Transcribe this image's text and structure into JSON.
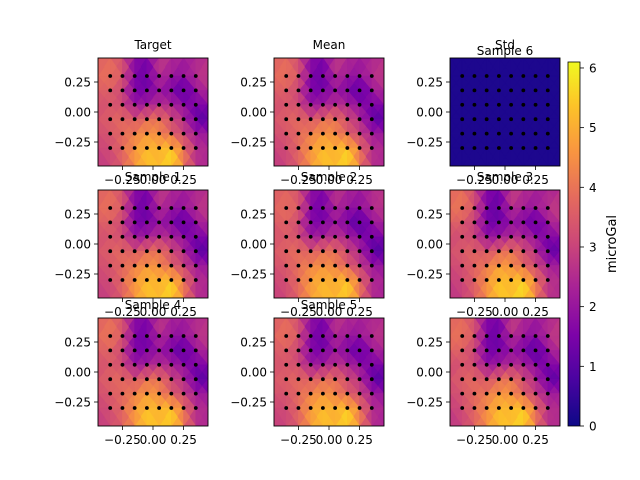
{
  "colors": {
    "colormap": "plasma",
    "dots": "#000000",
    "axes": "#000000",
    "background": "#ffffff"
  },
  "chart_data": {
    "type": "heatmap",
    "layout": "3x3 grid of filled contour panels sharing one colorbar",
    "x_ticks": [
      -0.25,
      0.0,
      0.25
    ],
    "x_tick_labels": [
      "−0.25",
      "0.00",
      "0.25"
    ],
    "y_ticks": [
      0.25,
      0.0,
      -0.25
    ],
    "y_tick_labels": [
      "0.25",
      "0.00",
      "−0.25"
    ],
    "xlim": [
      -0.45,
      0.45
    ],
    "ylim": [
      -0.45,
      0.45
    ],
    "station_x": [
      -0.35,
      -0.25,
      -0.15,
      -0.05,
      0.05,
      0.15,
      0.25,
      0.35
    ],
    "station_y": [
      0.3,
      0.18,
      0.06,
      -0.06,
      -0.18,
      -0.3
    ],
    "grid_x": [
      -0.45,
      -0.35,
      -0.25,
      -0.15,
      -0.05,
      0.05,
      0.15,
      0.25,
      0.35,
      0.45
    ],
    "grid_y": [
      0.45,
      0.3,
      0.18,
      0.06,
      -0.06,
      -0.18,
      -0.3,
      -0.45
    ],
    "colorbar": {
      "label": "microGal",
      "min": 0,
      "max": 6.1,
      "ticks": [
        0,
        1,
        2,
        3,
        4,
        5,
        6
      ],
      "tick_labels": [
        "0",
        "1",
        "2",
        "3",
        "4",
        "5",
        "6"
      ]
    },
    "panels": [
      {
        "title": "Target",
        "values": [
          [
            3.6,
            3.8,
            3.2,
            1.8,
            1.5,
            2.8,
            2.6,
            2.2,
            2.4,
            2.6
          ],
          [
            3.8,
            4.0,
            3.4,
            1.6,
            1.2,
            2.6,
            2.0,
            1.9,
            2.6,
            2.8
          ],
          [
            3.6,
            3.6,
            3.0,
            1.5,
            1.4,
            2.0,
            1.6,
            0.9,
            2.0,
            2.6
          ],
          [
            3.2,
            3.4,
            3.2,
            2.0,
            2.2,
            2.6,
            2.4,
            1.8,
            1.4,
            1.8
          ],
          [
            3.4,
            3.6,
            3.8,
            3.4,
            3.8,
            4.0,
            3.2,
            2.6,
            1.2,
            0.9
          ],
          [
            3.2,
            3.4,
            3.8,
            4.2,
            4.6,
            4.4,
            3.6,
            3.0,
            2.2,
            2.0
          ],
          [
            3.0,
            3.2,
            3.8,
            4.6,
            5.2,
            5.0,
            5.4,
            4.0,
            2.6,
            2.4
          ],
          [
            2.8,
            3.0,
            3.6,
            4.6,
            5.4,
            5.2,
            5.8,
            4.2,
            2.6,
            2.4
          ]
        ]
      },
      {
        "title": "Mean",
        "values": [
          [
            3.6,
            3.8,
            3.2,
            1.8,
            1.5,
            2.8,
            2.6,
            2.2,
            2.4,
            2.6
          ],
          [
            3.8,
            4.0,
            3.4,
            1.6,
            1.2,
            2.6,
            2.0,
            1.9,
            2.6,
            2.8
          ],
          [
            3.6,
            3.6,
            3.0,
            1.5,
            1.4,
            2.0,
            1.6,
            0.9,
            2.0,
            2.6
          ],
          [
            3.2,
            3.4,
            3.2,
            2.0,
            2.2,
            2.6,
            2.4,
            1.8,
            1.4,
            1.8
          ],
          [
            3.4,
            3.6,
            3.8,
            3.4,
            3.8,
            4.0,
            3.2,
            2.6,
            1.2,
            0.9
          ],
          [
            3.2,
            3.4,
            3.8,
            4.2,
            4.6,
            4.4,
            3.6,
            3.0,
            2.2,
            2.0
          ],
          [
            3.0,
            3.2,
            3.8,
            4.6,
            5.2,
            5.0,
            5.4,
            4.0,
            2.6,
            2.4
          ],
          [
            2.8,
            3.0,
            3.6,
            4.6,
            5.4,
            5.2,
            5.8,
            4.2,
            2.6,
            2.4
          ]
        ]
      },
      {
        "title": "Std",
        "overlay_title": "Sample 6",
        "values": [
          [
            0.2,
            0.2,
            0.2,
            0.2,
            0.2,
            0.2,
            0.2,
            0.2,
            0.2,
            0.2
          ],
          [
            0.2,
            0.2,
            0.2,
            0.2,
            0.2,
            0.2,
            0.2,
            0.2,
            0.2,
            0.2
          ],
          [
            0.2,
            0.2,
            0.2,
            0.2,
            0.2,
            0.2,
            0.2,
            0.2,
            0.2,
            0.2
          ],
          [
            0.2,
            0.2,
            0.2,
            0.2,
            0.2,
            0.2,
            0.2,
            0.2,
            0.2,
            0.2
          ],
          [
            0.2,
            0.2,
            0.2,
            0.2,
            0.2,
            0.2,
            0.2,
            0.2,
            0.2,
            0.2
          ],
          [
            0.2,
            0.2,
            0.2,
            0.2,
            0.2,
            0.2,
            0.2,
            0.2,
            0.2,
            0.2
          ],
          [
            0.2,
            0.2,
            0.2,
            0.2,
            0.2,
            0.2,
            0.2,
            0.2,
            0.2,
            0.2
          ],
          [
            0.2,
            0.2,
            0.2,
            0.2,
            0.2,
            0.2,
            0.2,
            0.2,
            0.2,
            0.2
          ]
        ]
      },
      {
        "title": "Sample 1",
        "values": [
          [
            3.6,
            3.8,
            3.2,
            1.8,
            1.5,
            2.8,
            2.6,
            2.2,
            2.4,
            2.6
          ],
          [
            3.8,
            4.0,
            3.4,
            1.6,
            1.2,
            2.6,
            2.0,
            1.9,
            2.6,
            2.8
          ],
          [
            3.6,
            3.6,
            3.0,
            1.5,
            1.4,
            2.0,
            1.6,
            0.9,
            2.0,
            2.6
          ],
          [
            3.2,
            3.4,
            3.2,
            2.0,
            2.2,
            2.6,
            2.4,
            1.8,
            1.4,
            1.8
          ],
          [
            3.4,
            3.6,
            3.8,
            3.4,
            3.8,
            4.0,
            3.2,
            2.6,
            1.2,
            0.9
          ],
          [
            3.2,
            3.4,
            3.8,
            4.2,
            4.6,
            4.4,
            3.6,
            3.0,
            2.2,
            2.0
          ],
          [
            3.0,
            3.2,
            3.8,
            4.6,
            5.2,
            5.0,
            5.4,
            4.0,
            2.6,
            2.4
          ],
          [
            2.8,
            3.0,
            3.6,
            4.6,
            5.4,
            5.2,
            5.8,
            4.2,
            2.6,
            2.4
          ]
        ]
      },
      {
        "title": "Sample 2",
        "values": [
          [
            3.5,
            3.7,
            3.3,
            1.9,
            1.6,
            2.7,
            2.5,
            2.1,
            2.5,
            2.7
          ],
          [
            3.7,
            3.9,
            3.5,
            1.7,
            1.3,
            2.5,
            1.9,
            1.8,
            2.5,
            2.7
          ],
          [
            3.5,
            3.7,
            3.1,
            1.6,
            1.5,
            2.1,
            1.5,
            0.8,
            1.9,
            2.5
          ],
          [
            3.3,
            3.5,
            3.3,
            2.1,
            2.3,
            2.7,
            2.3,
            1.7,
            1.3,
            1.7
          ],
          [
            3.5,
            3.7,
            3.9,
            3.5,
            3.9,
            3.9,
            3.1,
            2.5,
            1.1,
            0.8
          ],
          [
            3.3,
            3.5,
            3.9,
            4.3,
            4.5,
            4.3,
            3.5,
            2.9,
            2.1,
            1.9
          ],
          [
            3.1,
            3.3,
            3.9,
            4.7,
            5.1,
            4.9,
            5.3,
            3.9,
            2.5,
            2.3
          ],
          [
            2.9,
            3.1,
            3.7,
            4.7,
            5.3,
            5.1,
            5.7,
            4.1,
            2.5,
            2.3
          ]
        ]
      },
      {
        "title": "Sample 3",
        "values": [
          [
            3.7,
            3.9,
            3.1,
            1.7,
            1.4,
            2.9,
            2.7,
            2.3,
            2.3,
            2.5
          ],
          [
            3.9,
            4.1,
            3.3,
            1.5,
            1.1,
            2.7,
            2.1,
            2.0,
            2.7,
            2.9
          ],
          [
            3.7,
            3.5,
            2.9,
            1.4,
            1.3,
            1.9,
            1.7,
            1.0,
            2.1,
            2.7
          ],
          [
            3.1,
            3.3,
            3.1,
            1.9,
            2.1,
            2.5,
            2.5,
            1.9,
            1.5,
            1.9
          ],
          [
            3.3,
            3.5,
            3.7,
            3.3,
            3.7,
            4.1,
            3.3,
            2.7,
            1.3,
            1.0
          ],
          [
            3.1,
            3.3,
            3.7,
            4.1,
            4.7,
            4.5,
            3.7,
            3.1,
            2.3,
            2.1
          ],
          [
            2.9,
            3.1,
            3.7,
            4.5,
            5.3,
            5.1,
            5.5,
            4.1,
            2.7,
            2.5
          ],
          [
            2.7,
            2.9,
            3.5,
            4.5,
            5.5,
            5.3,
            5.9,
            4.3,
            2.7,
            2.5
          ]
        ]
      },
      {
        "title": "Sample 4",
        "values": [
          [
            3.6,
            3.9,
            3.3,
            1.8,
            1.6,
            2.8,
            2.4,
            2.2,
            2.5,
            2.6
          ],
          [
            3.8,
            4.1,
            3.4,
            1.6,
            1.3,
            2.6,
            1.9,
            1.9,
            2.6,
            2.8
          ],
          [
            3.6,
            3.7,
            3.0,
            1.5,
            1.5,
            2.0,
            1.5,
            0.9,
            2.0,
            2.6
          ],
          [
            3.2,
            3.5,
            3.2,
            2.0,
            2.3,
            2.6,
            2.3,
            1.8,
            1.4,
            1.8
          ],
          [
            3.4,
            3.7,
            3.8,
            3.4,
            3.9,
            4.0,
            3.1,
            2.6,
            1.2,
            0.9
          ],
          [
            3.2,
            3.5,
            3.8,
            4.2,
            4.7,
            4.4,
            3.5,
            3.0,
            2.2,
            2.0
          ],
          [
            3.0,
            3.3,
            3.8,
            4.6,
            5.3,
            5.0,
            5.3,
            4.0,
            2.6,
            2.4
          ],
          [
            2.8,
            3.1,
            3.6,
            4.6,
            5.5,
            5.2,
            5.7,
            4.2,
            2.6,
            2.4
          ]
        ]
      },
      {
        "title": "Sample 5",
        "values": [
          [
            3.5,
            3.8,
            3.2,
            1.9,
            1.5,
            2.7,
            2.6,
            2.3,
            2.4,
            2.5
          ],
          [
            3.7,
            4.0,
            3.4,
            1.7,
            1.2,
            2.5,
            2.0,
            2.0,
            2.6,
            2.7
          ],
          [
            3.5,
            3.6,
            3.0,
            1.6,
            1.4,
            2.1,
            1.6,
            1.0,
            2.0,
            2.5
          ],
          [
            3.3,
            3.4,
            3.2,
            2.1,
            2.2,
            2.7,
            2.4,
            1.9,
            1.4,
            1.7
          ],
          [
            3.5,
            3.6,
            3.8,
            3.5,
            3.8,
            3.9,
            3.2,
            2.7,
            1.2,
            0.8
          ],
          [
            3.3,
            3.4,
            3.8,
            4.3,
            4.6,
            4.3,
            3.6,
            3.1,
            2.2,
            1.9
          ],
          [
            3.1,
            3.2,
            3.8,
            4.7,
            5.2,
            4.9,
            5.4,
            4.1,
            2.6,
            2.3
          ],
          [
            2.9,
            3.0,
            3.6,
            4.7,
            5.4,
            5.1,
            5.8,
            4.3,
            2.6,
            2.3
          ]
        ]
      },
      {
        "title": "",
        "values": [
          [
            3.7,
            3.8,
            3.2,
            1.7,
            1.5,
            2.9,
            2.6,
            2.1,
            2.4,
            2.7
          ],
          [
            3.9,
            4.0,
            3.4,
            1.5,
            1.2,
            2.7,
            2.0,
            1.8,
            2.6,
            2.9
          ],
          [
            3.7,
            3.6,
            3.0,
            1.4,
            1.4,
            1.9,
            1.6,
            0.8,
            2.0,
            2.7
          ],
          [
            3.1,
            3.4,
            3.2,
            1.9,
            2.2,
            2.5,
            2.4,
            1.7,
            1.4,
            1.9
          ],
          [
            3.3,
            3.6,
            3.8,
            3.3,
            3.8,
            4.1,
            3.2,
            2.5,
            1.2,
            1.0
          ],
          [
            3.1,
            3.4,
            3.8,
            4.1,
            4.6,
            4.5,
            3.6,
            2.9,
            2.2,
            2.1
          ],
          [
            2.9,
            3.2,
            3.8,
            4.5,
            5.2,
            5.1,
            5.4,
            3.9,
            2.6,
            2.5
          ],
          [
            2.7,
            3.0,
            3.6,
            4.5,
            5.4,
            5.3,
            5.8,
            4.1,
            2.6,
            2.5
          ]
        ]
      }
    ]
  }
}
